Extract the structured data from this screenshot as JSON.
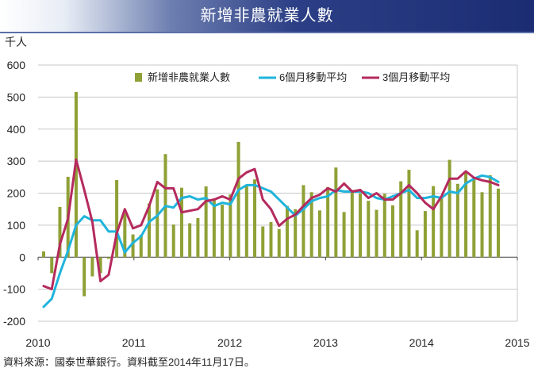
{
  "title": "新增非農就業人數",
  "source_note": "資料來源：國泰世華銀行。資料截至2014年11月17日。",
  "colors": {
    "bar": "#8fa035",
    "ma6": "#1fb4dc",
    "ma3": "#b52a5e",
    "grid": "#c8c8c8",
    "title_dark": "#1b2c73"
  },
  "chart_data": {
    "type": "bar",
    "unit_label": "千人",
    "ylim": [
      -200,
      600
    ],
    "yticks": [
      -200,
      -100,
      0,
      100,
      200,
      300,
      400,
      500,
      600
    ],
    "xlim": [
      2010,
      2015
    ],
    "xticks": [
      "2010",
      "2011",
      "2012",
      "2013",
      "2014",
      "2015"
    ],
    "grid": true,
    "legend_position": "top",
    "series": [
      {
        "name": "新增非農就業人數",
        "kind": "bar",
        "values": [
          18,
          -50,
          157,
          251,
          516,
          -122,
          -60,
          -50,
          -5,
          241,
          137,
          71,
          70,
          168,
          212,
          322,
          102,
          217,
          106,
          122,
          221,
          183,
          164,
          196,
          360,
          226,
          243,
          96,
          110,
          88,
          160,
          150,
          225,
          203,
          146,
          219,
          280,
          141,
          209,
          199,
          176,
          148,
          198,
          162,
          237,
          273,
          84,
          144,
          222,
          188,
          304,
          229,
          267,
          243,
          203,
          256,
          214
        ]
      },
      {
        "name": "6個月移動平均",
        "kind": "line",
        "values": [
          -155,
          -130,
          -50,
          20,
          100,
          128,
          115,
          115,
          80,
          80,
          15,
          45,
          65,
          110,
          130,
          160,
          155,
          185,
          190,
          180,
          185,
          160,
          170,
          165,
          210,
          225,
          225,
          215,
          205,
          180,
          155,
          130,
          150,
          175,
          185,
          190,
          210,
          205,
          205,
          205,
          200,
          185,
          180,
          190,
          200,
          210,
          185,
          185,
          190,
          185,
          205,
          200,
          230,
          245,
          255,
          250,
          235
        ]
      },
      {
        "name": "3個月移動平均",
        "kind": "line",
        "values": [
          -90,
          -100,
          40,
          120,
          305,
          210,
          110,
          -75,
          -55,
          75,
          150,
          90,
          100,
          160,
          235,
          215,
          215,
          140,
          145,
          150,
          175,
          180,
          190,
          180,
          245,
          265,
          275,
          180,
          150,
          98,
          120,
          133,
          160,
          185,
          195,
          215,
          205,
          230,
          205,
          210,
          185,
          200,
          180,
          180,
          200,
          225,
          200,
          170,
          150,
          190,
          245,
          245,
          268,
          248,
          240,
          235,
          225
        ]
      }
    ]
  }
}
